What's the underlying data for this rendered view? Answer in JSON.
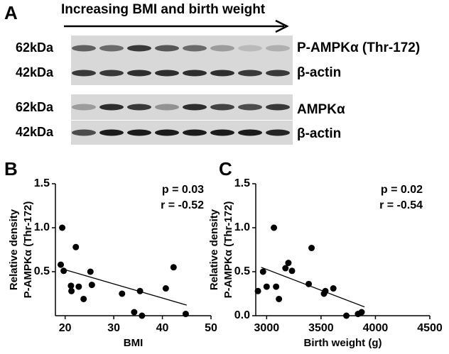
{
  "panel_labels": [
    "A",
    "B",
    "C"
  ],
  "blot": {
    "arrow_label": "Increasing BMI and birth weight",
    "left_labels": [
      "62kDa",
      "42kDa",
      "62kDa",
      "42kDa"
    ],
    "right_labels": [
      "P-AMPKα (Thr-172)",
      "β-actin",
      "AMPKα",
      "β-actin"
    ]
  },
  "chart_data": [
    {
      "type": "scatter",
      "ylabel": [
        "Relative density",
        "P-AMPKα (Thr-172)"
      ],
      "xlabel": "BMI",
      "annotations": [
        "p = 0.03",
        "r = -0.52"
      ],
      "color": "#000000",
      "x": [
        19.1,
        19.4,
        19.7,
        21.2,
        21.3,
        22.2,
        22.8,
        23.8,
        25.2,
        25.5,
        31.7,
        34.2,
        35.4,
        35.8,
        40.7,
        42.3,
        44.8
      ],
      "values": [
        0.58,
        1.0,
        0.51,
        0.34,
        0.28,
        0.78,
        0.33,
        0.19,
        0.5,
        0.35,
        0.25,
        0.04,
        0.28,
        0.0,
        0.31,
        0.55,
        0.02
      ],
      "fit_line": {
        "x": [
          19.5,
          45
        ],
        "y": [
          0.53,
          0.12
        ]
      },
      "xlim": [
        18,
        50
      ],
      "xticks": [
        20,
        30,
        40,
        50
      ],
      "ylim": [
        0,
        1.5
      ],
      "yticks": [
        0.5,
        {
          "value": 1.0,
          "label": "1.0"
        },
        1.5
      ]
    },
    {
      "type": "scatter",
      "ylabel": [
        "Relative density",
        "P-AMPKα (Thr-172)"
      ],
      "xlabel": "Birth weight (g)",
      "annotations": [
        "p = 0.02",
        "r = -0.54"
      ],
      "color": "#000000",
      "x": [
        2920,
        2967,
        3000,
        3067,
        3087,
        3113,
        3173,
        3200,
        3233,
        3387,
        3413,
        3527,
        3540,
        3613,
        3733,
        3840,
        3873
      ],
      "values": [
        0.28,
        0.5,
        0.33,
        1.0,
        0.33,
        0.19,
        0.54,
        0.6,
        0.51,
        0.36,
        0.77,
        0.25,
        0.28,
        0.31,
        0.0,
        0.02,
        0.04
      ],
      "fit_line": {
        "x": [
          2950,
          3900
        ],
        "y": [
          0.55,
          0.1
        ]
      },
      "xlim": [
        2900,
        4500
      ],
      "xticks": [
        3000,
        3500,
        4000,
        4500
      ],
      "ylim": [
        0,
        1.5
      ],
      "yticks": [
        {
          "value": 0.0,
          "label": "0.0"
        },
        0.5,
        {
          "value": 1.0,
          "label": "1.0"
        },
        1.5
      ]
    }
  ]
}
